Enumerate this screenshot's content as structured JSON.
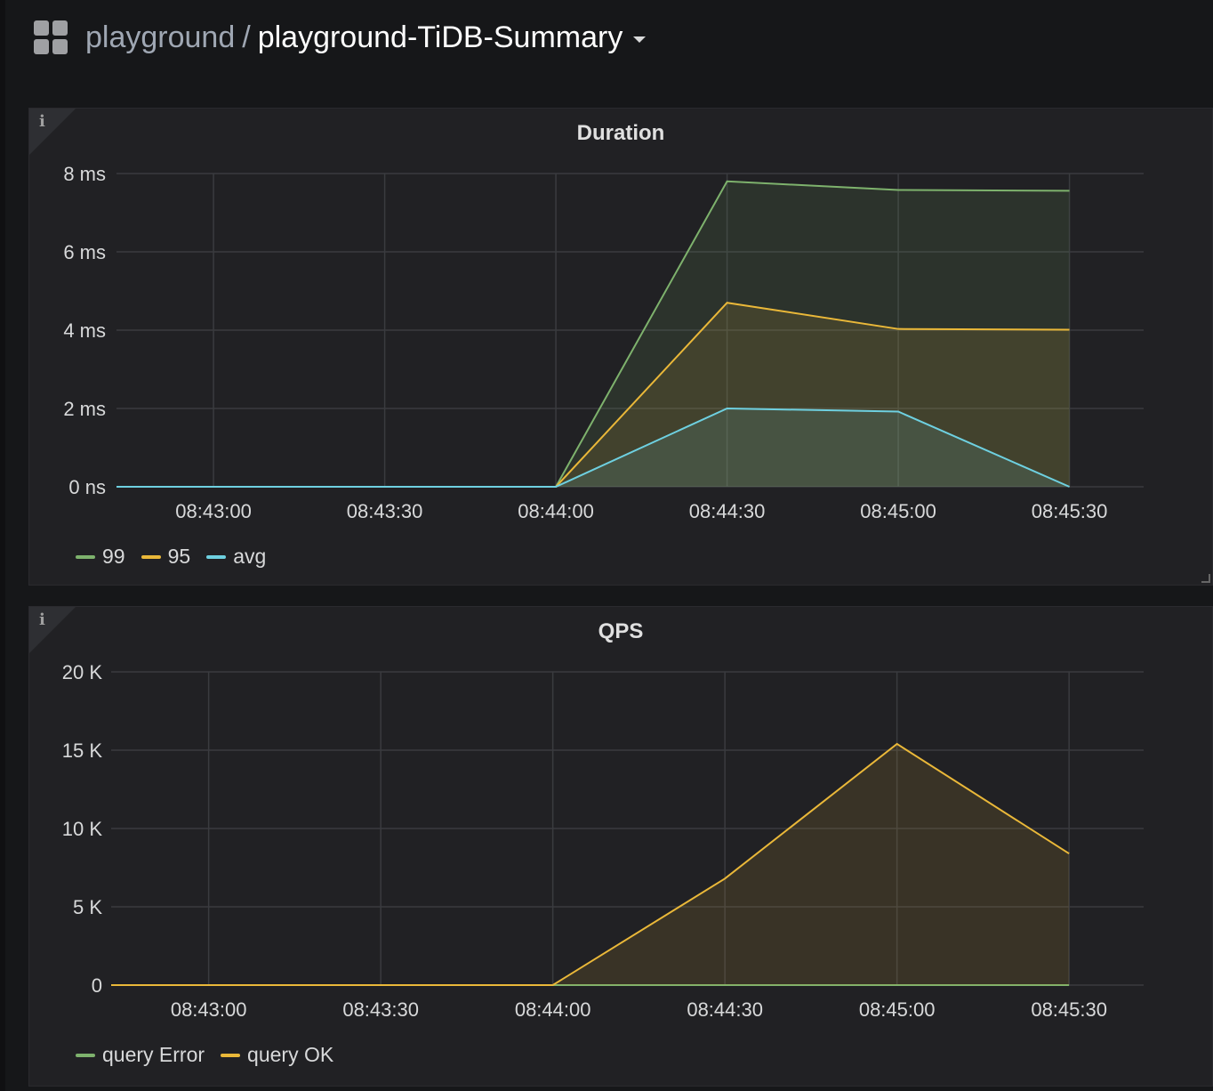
{
  "header": {
    "folder": "playground",
    "separator": "/",
    "dashboard": "playground-TiDB-Summary",
    "icon": "apps-grid-icon"
  },
  "colors": {
    "green": "#7eb26d",
    "yellow": "#eab839",
    "cyan": "#6ed0e0"
  },
  "chart_data": [
    {
      "type": "area",
      "title": "Duration",
      "x": [
        "08:44:00",
        "08:44:30",
        "08:45:00",
        "08:45:30"
      ],
      "x_ticks": [
        "08:43:00",
        "08:43:30",
        "08:44:00",
        "08:44:30",
        "08:45:00",
        "08:45:30"
      ],
      "x_range": [
        "08:42:43",
        "08:45:43"
      ],
      "y_ticks": [
        "0 ns",
        "2 ms",
        "4 ms",
        "6 ms",
        "8 ms"
      ],
      "ylim": [
        0,
        8
      ],
      "y_unit": "ms",
      "grid": true,
      "legend": "bottom-left",
      "series": [
        {
          "name": "99",
          "color": "#7eb26d",
          "x": [
            "08:42:43",
            "08:44:00",
            "08:44:30",
            "08:45:00",
            "08:45:30"
          ],
          "values": [
            0,
            0,
            7.8,
            7.58,
            7.56
          ]
        },
        {
          "name": "95",
          "color": "#eab839",
          "x": [
            "08:42:43",
            "08:44:00",
            "08:44:30",
            "08:45:00",
            "08:45:30"
          ],
          "values": [
            0,
            0,
            4.7,
            4.03,
            4.01
          ]
        },
        {
          "name": "avg",
          "color": "#6ed0e0",
          "x": [
            "08:42:43",
            "08:44:00",
            "08:44:30",
            "08:45:00",
            "08:45:30"
          ],
          "values": [
            0,
            0,
            2.0,
            1.92,
            0
          ]
        }
      ]
    },
    {
      "type": "area",
      "title": "QPS",
      "x_ticks": [
        "08:43:00",
        "08:43:30",
        "08:44:00",
        "08:44:30",
        "08:45:00",
        "08:45:30"
      ],
      "x_range": [
        "08:42:43",
        "08:45:43"
      ],
      "y_ticks": [
        "0",
        "5 K",
        "10 K",
        "15 K",
        "20 K"
      ],
      "ylim": [
        0,
        20000
      ],
      "grid": true,
      "legend": "bottom-left",
      "series": [
        {
          "name": "query Error",
          "color": "#7eb26d",
          "x": [
            "08:42:43",
            "08:44:00",
            "08:44:30",
            "08:45:00",
            "08:45:30"
          ],
          "values": [
            0,
            0,
            0,
            0,
            0
          ]
        },
        {
          "name": "query OK",
          "color": "#eab839",
          "x": [
            "08:42:43",
            "08:44:00",
            "08:44:30",
            "08:45:00",
            "08:45:30"
          ],
          "values": [
            0,
            0,
            6800,
            15400,
            8400
          ]
        }
      ]
    }
  ]
}
